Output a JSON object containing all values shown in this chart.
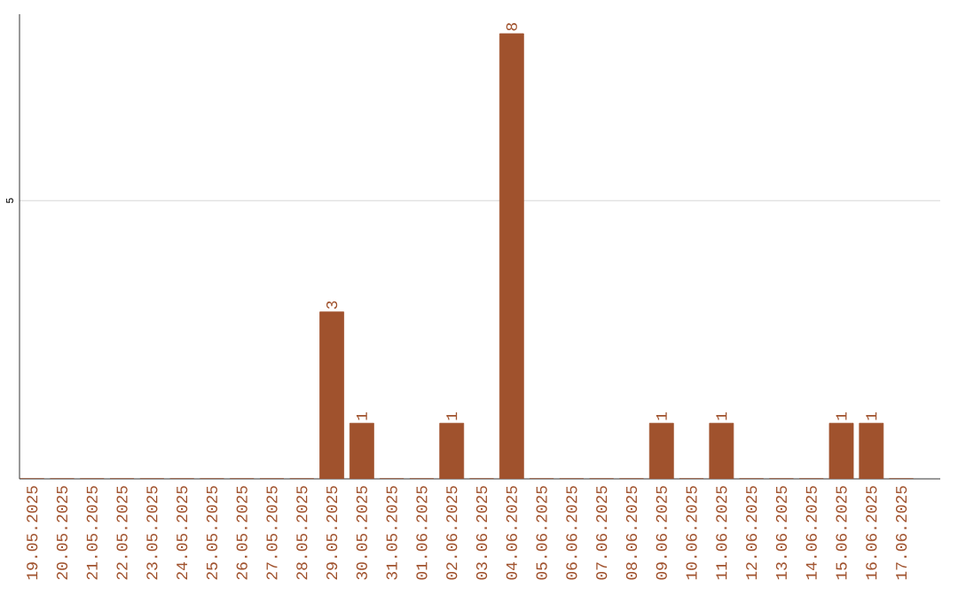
{
  "chart_data": {
    "type": "bar",
    "categories": [
      "19.05.2025",
      "20.05.2025",
      "21.05.2025",
      "22.05.2025",
      "23.05.2025",
      "24.05.2025",
      "25.05.2025",
      "26.05.2025",
      "27.05.2025",
      "28.05.2025",
      "29.05.2025",
      "30.05.2025",
      "31.05.2025",
      "01.06.2025",
      "02.06.2025",
      "03.06.2025",
      "04.06.2025",
      "05.06.2025",
      "06.06.2025",
      "07.06.2025",
      "08.06.2025",
      "09.06.2025",
      "10.06.2025",
      "11.06.2025",
      "12.06.2025",
      "13.06.2025",
      "14.06.2025",
      "15.06.2025",
      "16.06.2025",
      "17.06.2025"
    ],
    "values": [
      0,
      0,
      0,
      0,
      0,
      0,
      0,
      0,
      0,
      0,
      3,
      1,
      0,
      0,
      1,
      0,
      8,
      0,
      0,
      0,
      0,
      1,
      0,
      1,
      0,
      0,
      0,
      1,
      1,
      0
    ],
    "value_labels": [
      null,
      null,
      null,
      null,
      null,
      null,
      null,
      null,
      null,
      null,
      "3",
      "1",
      null,
      null,
      "1",
      null,
      "8",
      null,
      null,
      null,
      null,
      "1",
      null,
      "1",
      null,
      null,
      null,
      "1",
      "1",
      null
    ],
    "color": "#a0522d",
    "ylim": [
      0,
      8.35
    ],
    "yticks": [
      5
    ],
    "grid": "y"
  }
}
